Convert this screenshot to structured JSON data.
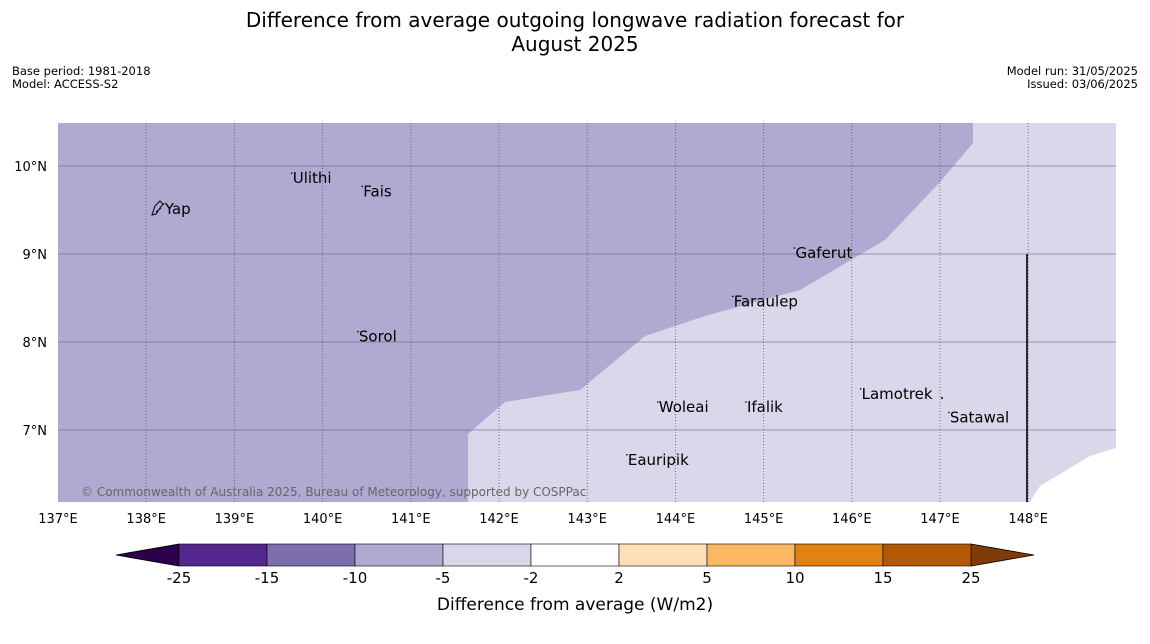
{
  "title": {
    "line1": "Difference from average outgoing longwave radiation forecast for",
    "line2": "August 2025"
  },
  "meta": {
    "base_period": "Base period: 1981-2018",
    "model": "Model: ACCESS-S2",
    "model_run": "Model run: 31/05/2025",
    "issued": "Issued: 03/06/2025"
  },
  "map": {
    "lon_range": [
      137,
      149
    ],
    "lat_range": [
      6.2,
      10.5
    ],
    "lon_ticks": [
      137,
      138,
      139,
      140,
      141,
      142,
      143,
      144,
      145,
      146,
      147,
      148
    ],
    "lon_labels": [
      "137°E",
      "138°E",
      "139°E",
      "140°E",
      "141°E",
      "142°E",
      "143°E",
      "144°E",
      "145°E",
      "146°E",
      "147°E",
      "148°E"
    ],
    "lat_ticks": [
      7,
      8,
      9,
      10
    ],
    "lat_labels": [
      "7°N",
      "8°N",
      "9°N",
      "10°N"
    ],
    "colors": {
      "band_neg10_neg5": "#b0aad1",
      "band_neg5_neg2": "#d8d8ea",
      "grid": "#555577",
      "boundary": "#000000"
    },
    "places": [
      {
        "name": "Yap",
        "lon": 138.2,
        "lat": 9.5
      },
      {
        "name": "Ulithi",
        "lon": 139.65,
        "lat": 9.85
      },
      {
        "name": "Fais",
        "lon": 140.45,
        "lat": 9.7
      },
      {
        "name": "Gaferut",
        "lon": 145.35,
        "lat": 9.0
      },
      {
        "name": "Faraulep",
        "lon": 144.65,
        "lat": 8.45
      },
      {
        "name": "Sorol",
        "lon": 140.4,
        "lat": 8.05
      },
      {
        "name": "Woleai",
        "lon": 143.8,
        "lat": 7.25
      },
      {
        "name": "Ifalik",
        "lon": 144.8,
        "lat": 7.25
      },
      {
        "name": "Lamotrek",
        "lon": 146.1,
        "lat": 7.4
      },
      {
        "name": "Satawal",
        "lon": 147.1,
        "lat": 7.13
      },
      {
        "name": "Eauripik",
        "lon": 143.45,
        "lat": 6.65
      }
    ],
    "copyright": "© Commonwealth of Australia 2025, Bureau of Meteorology, supported by COSPPac"
  },
  "colorbar": {
    "title": "Difference from average (W/m2)",
    "labels": [
      "-25",
      "-15",
      "-10",
      "-5",
      "-2",
      "2",
      "5",
      "10",
      "15",
      "25"
    ],
    "colors": [
      "#54278f",
      "#7e6eac",
      "#b0aad1",
      "#d8d8ea",
      "#ffffff",
      "#fde0b6",
      "#fdb863",
      "#e08214",
      "#b35806"
    ],
    "under_color": "#2d004b",
    "over_color": "#7f3b08"
  }
}
